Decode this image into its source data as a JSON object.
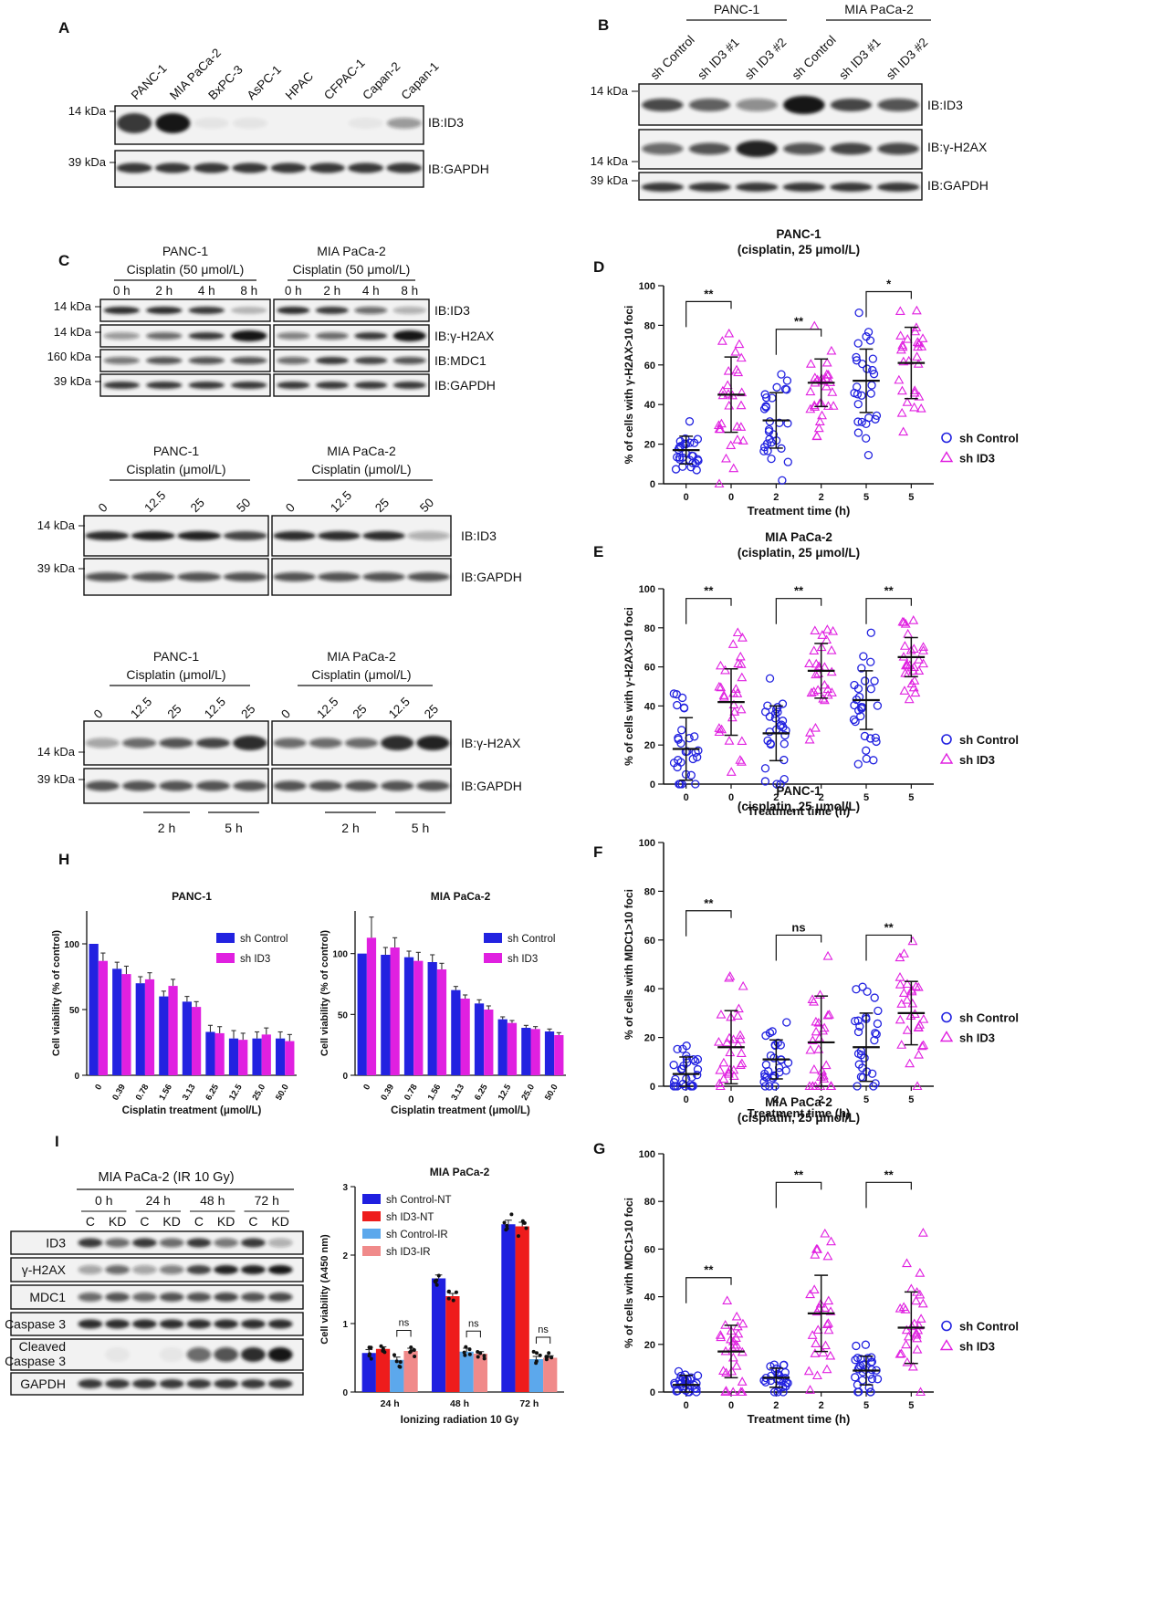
{
  "figure": {
    "panel_letters": [
      "A",
      "B",
      "C",
      "D",
      "E",
      "F",
      "G",
      "H",
      "I"
    ],
    "colors": {
      "sh_control": "#2222e0",
      "sh_id3": "#e020e0",
      "band": "#151515",
      "nt_control": "#1f1fe0",
      "nt_id3": "#ee1c1c",
      "ir_control": "#5ca8ec",
      "ir_id3": "#f08a8a"
    },
    "panel_a": {
      "lanes": [
        "PANC-1",
        "MIA PaCa-2",
        "BxPC-3",
        "AsPC-1",
        "HPAC",
        "CFPAC-1",
        "Capan-2",
        "Capan-1"
      ],
      "markers": [
        "14 kDa",
        "39 kDa"
      ],
      "blots": [
        "IB:ID3",
        "IB:GAPDH"
      ],
      "id3_intensity": [
        0.85,
        1.0,
        0.06,
        0.06,
        0.0,
        0.0,
        0.05,
        0.4
      ]
    },
    "panel_c": {
      "groups": [
        "PANC-1",
        "MIA PaCa-2"
      ],
      "lanes": [
        "sh Control",
        "sh ID3 #1",
        "sh ID3 #2",
        "sh Control",
        "sh ID3 #1",
        "sh ID3 #2"
      ],
      "markers": [
        "14 kDa",
        "14 kDa",
        "39 kDa"
      ],
      "blots": [
        "IB:ID3",
        "IB:γ-H2AX",
        "IB:GAPDH"
      ]
    },
    "panel_b": {
      "time": {
        "groups": [
          "PANC-1",
          "MIA PaCa-2"
        ],
        "subtitles": [
          "Cisplatin (50 μmol/L)",
          "Cisplatin (50 μmol/L)"
        ],
        "lanes": [
          "0 h",
          "2 h",
          "4 h",
          "8 h"
        ],
        "markers": [
          "14 kDa",
          "14 kDa",
          "160 kDa",
          "39 kDa"
        ],
        "blots": [
          "IB:ID3",
          "IB:γ-H2AX",
          "IB:MDC1",
          "IB:GAPDH"
        ]
      },
      "dose": {
        "groups": [
          "PANC-1",
          "MIA PaCa-2"
        ],
        "subtitles": [
          "Cisplatin (μmol/L)",
          "Cisplatin (μmol/L)"
        ],
        "lanes": [
          "0",
          "12.5",
          "25",
          "50"
        ],
        "markers": [
          "14 kDa",
          "39 kDa"
        ],
        "blots": [
          "IB:ID3",
          "IB:GAPDH"
        ]
      },
      "dose_time": {
        "groups": [
          "PANC-1",
          "MIA PaCa-2"
        ],
        "subtitles": [
          "Cisplatin (μmol/L)",
          "Cisplatin (μmol/L)"
        ],
        "lanes": [
          "0",
          "12.5",
          "25",
          "12.5",
          "25"
        ],
        "markers": [
          "14 kDa",
          "39 kDa"
        ],
        "blots": [
          "IB:γ-H2AX",
          "IB:GAPDH"
        ],
        "times": [
          "2 h",
          "5 h",
          "2 h",
          "5 h"
        ]
      }
    },
    "panel_i_blot": {
      "title": "MIA PaCa-2 (IR 10 Gy)",
      "times": [
        "0 h",
        "24 h",
        "48 h",
        "72 h"
      ],
      "lanes": [
        "C",
        "KD",
        "C",
        "KD",
        "C",
        "KD",
        "C",
        "KD"
      ],
      "rows": [
        "ID3",
        "γ-H2AX",
        "MDC1",
        "Caspase 3",
        "Cleaved\nCaspase 3",
        "GAPDH"
      ]
    }
  },
  "chart_data": [
    {
      "id": "D",
      "type": "scatter",
      "title": "PANC-1",
      "subtitle": "(cisplatin, 25 μmol/L)",
      "xlabel": "Treatment time (h)",
      "ylabel": "% of cells with γ-H2AX>10 foci",
      "categories": [
        "0",
        "0",
        "2",
        "2",
        "5",
        "5"
      ],
      "ylim": [
        0,
        100
      ],
      "yticks": [
        0,
        20,
        40,
        60,
        80,
        100
      ],
      "legend": [
        "sh Control",
        "sh ID3"
      ],
      "means": [
        17,
        45,
        32,
        51,
        52,
        61
      ],
      "sds": [
        7,
        19,
        14,
        12,
        16,
        18
      ],
      "comparisons": [
        {
          "pair": [
            0,
            1
          ],
          "label": "**",
          "level": 92
        },
        {
          "pair": [
            2,
            3
          ],
          "label": "**",
          "level": 78
        },
        {
          "pair": [
            4,
            5
          ],
          "label": "*",
          "level": 97
        }
      ]
    },
    {
      "id": "E",
      "type": "scatter",
      "title": "MIA PaCa-2",
      "subtitle": "(cisplatin, 25 μmol/L)",
      "xlabel": "Treatment time (h)",
      "ylabel": "% of cells with γ-H2AX>10 foci",
      "categories": [
        "0",
        "0",
        "2",
        "2",
        "5",
        "5"
      ],
      "ylim": [
        0,
        100
      ],
      "yticks": [
        0,
        20,
        40,
        60,
        80,
        100
      ],
      "legend": [
        "sh Control",
        "sh ID3"
      ],
      "means": [
        18,
        42,
        26,
        58,
        43,
        65
      ],
      "sds": [
        16,
        17,
        14,
        14,
        15,
        10
      ],
      "comparisons": [
        {
          "pair": [
            0,
            1
          ],
          "label": "**",
          "level": 95
        },
        {
          "pair": [
            2,
            3
          ],
          "label": "**",
          "level": 95
        },
        {
          "pair": [
            4,
            5
          ],
          "label": "**",
          "level": 95
        }
      ]
    },
    {
      "id": "F",
      "type": "scatter",
      "title": "PANC-1",
      "subtitle": "(cisplatin, 25 μmol/L)",
      "xlabel": "Treatment time (h)",
      "ylabel": "% of cells with MDC1>10 foci",
      "categories": [
        "0",
        "0",
        "2",
        "2",
        "5",
        "5"
      ],
      "ylim": [
        0,
        100
      ],
      "yticks": [
        0,
        20,
        40,
        60,
        80,
        100
      ],
      "legend": [
        "sh Control",
        "sh ID3"
      ],
      "means": [
        5,
        16,
        11,
        18,
        16,
        30
      ],
      "sds": [
        7,
        15,
        8,
        19,
        14,
        13
      ],
      "comparisons": [
        {
          "pair": [
            0,
            1
          ],
          "label": "**",
          "level": 72
        },
        {
          "pair": [
            2,
            3
          ],
          "label": "ns",
          "level": 62
        },
        {
          "pair": [
            4,
            5
          ],
          "label": "**",
          "level": 62
        }
      ]
    },
    {
      "id": "G",
      "type": "scatter",
      "title": "MIA PaCa-2",
      "subtitle": "(cisplatin, 25 μmol/L)",
      "xlabel": "Treatment time (h)",
      "ylabel": "% of cells with MDC1>10 foci",
      "categories": [
        "0",
        "0",
        "2",
        "2",
        "5",
        "5"
      ],
      "ylim": [
        0,
        100
      ],
      "yticks": [
        0,
        20,
        40,
        60,
        80,
        100
      ],
      "legend": [
        "sh Control",
        "sh ID3"
      ],
      "means": [
        3,
        17,
        6,
        33,
        9,
        27
      ],
      "sds": [
        4,
        11,
        4,
        16,
        6,
        15
      ],
      "comparisons": [
        {
          "pair": [
            0,
            1
          ],
          "label": "**",
          "level": 48
        },
        {
          "pair": [
            2,
            3
          ],
          "label": "**",
          "level": 88
        },
        {
          "pair": [
            4,
            5
          ],
          "label": "**",
          "level": 88
        }
      ]
    },
    {
      "id": "H1",
      "type": "bar",
      "title": "PANC-1",
      "xlabel": "Cisplatin treatment (μmol/L)",
      "ylabel": "Cell viability (% of control)",
      "categories": [
        "0",
        "0.39",
        "0.78",
        "1.56",
        "3.13",
        "6.25",
        "12.5",
        "25.0",
        "50.0"
      ],
      "ylim": [
        0,
        125
      ],
      "yticks": [
        0,
        50,
        100
      ],
      "series": [
        {
          "name": "sh Control",
          "values": [
            100,
            81,
            70,
            60,
            56,
            33,
            28,
            28,
            28
          ],
          "errors": [
            0,
            5,
            5,
            4,
            4,
            5,
            6,
            5,
            5
          ]
        },
        {
          "name": "sh ID3",
          "values": [
            87,
            77,
            73,
            68,
            52,
            32,
            27,
            31,
            26
          ],
          "errors": [
            6,
            6,
            5,
            5,
            4,
            5,
            5,
            5,
            5
          ]
        }
      ]
    },
    {
      "id": "H2",
      "type": "bar",
      "title": "MIA PaCa-2",
      "xlabel": "Cisplatin treatment (μmol/L)",
      "ylabel": "Cell viability (% of control)",
      "categories": [
        "0",
        "0.39",
        "0.78",
        "1.56",
        "3.13",
        "6.25",
        "12.5",
        "25.0",
        "50.0"
      ],
      "ylim": [
        0,
        135
      ],
      "yticks": [
        0,
        50,
        100
      ],
      "series": [
        {
          "name": "sh Control",
          "values": [
            100,
            99,
            97,
            93,
            70,
            59,
            46,
            39,
            36
          ],
          "errors": [
            0,
            6,
            5,
            6,
            3,
            3,
            2,
            2,
            2
          ]
        },
        {
          "name": "sh ID3",
          "values": [
            113,
            105,
            94,
            87,
            63,
            54,
            43,
            38,
            33
          ],
          "errors": [
            17,
            8,
            7,
            5,
            3,
            3,
            2,
            2,
            2
          ]
        }
      ]
    },
    {
      "id": "I",
      "type": "bar",
      "title": "MIA PaCa-2",
      "xlabel": "Ionizing radiation 10 Gy",
      "ylabel": "Cell viability (A450 nm)",
      "categories": [
        "24 h",
        "48 h",
        "72 h"
      ],
      "ylim": [
        0,
        3
      ],
      "yticks": [
        0,
        1,
        2,
        3
      ],
      "series": [
        {
          "name": "sh Control-NT",
          "values": [
            0.57,
            1.66,
            2.45
          ],
          "errors": [
            0.05,
            0.05,
            0.06
          ]
        },
        {
          "name": "sh ID3-NT",
          "values": [
            0.63,
            1.4,
            2.42
          ],
          "errors": [
            0.03,
            0.04,
            0.06
          ]
        },
        {
          "name": "sh Control-IR",
          "values": [
            0.47,
            0.59,
            0.48
          ],
          "errors": [
            0.04,
            0.05,
            0.04
          ]
        },
        {
          "name": "sh ID3-IR",
          "values": [
            0.6,
            0.56,
            0.5
          ],
          "errors": [
            0.04,
            0.03,
            0.03
          ]
        }
      ],
      "comparisons": [
        "ns",
        "ns",
        "ns"
      ]
    }
  ]
}
